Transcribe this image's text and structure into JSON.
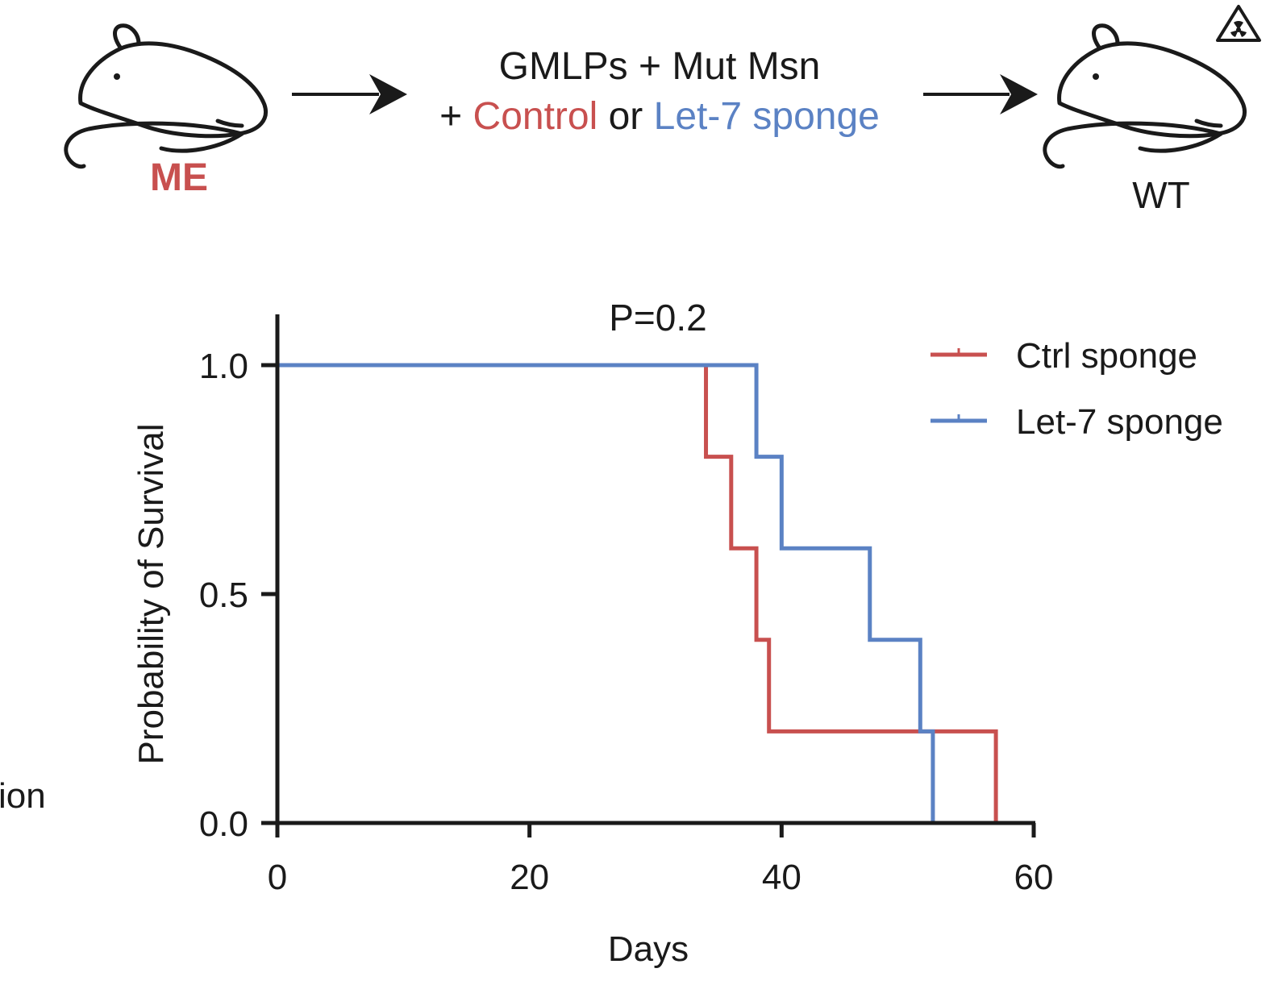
{
  "schematic": {
    "donor_label": "ME",
    "line1": "GMLPs + Mut Msn",
    "line2_prefix": "+ ",
    "line2_control": "Control",
    "line2_or": " or ",
    "line2_sponge": "Let-7 sponge",
    "recipient_label": "WT",
    "radiation_icon": "radiation-warning-icon",
    "mouse_icon": "mouse-icon",
    "arrow_icon": "right-arrow-icon"
  },
  "cropped_text": "ion",
  "colors": {
    "control": "#c8504f",
    "sponge": "#5b82c4",
    "axis": "#1a1a1a"
  },
  "chart_data": {
    "type": "line",
    "subtype": "kaplan-meier-step",
    "title": "P=0.2",
    "xlabel": "Days",
    "ylabel": "Probability of Survival",
    "xlim": [
      0,
      60
    ],
    "ylim": [
      0,
      1.0
    ],
    "xticks": [
      "0",
      "20",
      "40",
      "60"
    ],
    "yticks": [
      "0.0",
      "0.5",
      "1.0"
    ],
    "xtick_values": [
      0,
      20,
      40,
      60
    ],
    "ytick_values": [
      0,
      0.5,
      1.0
    ],
    "grid": false,
    "legend_position": "top-right",
    "series": [
      {
        "name": "Ctrl sponge",
        "color": "#c8504f",
        "x": [
          0,
          34,
          36,
          38,
          39,
          57
        ],
        "y": [
          1.0,
          0.8,
          0.6,
          0.4,
          0.2,
          0.0
        ]
      },
      {
        "name": "Let-7 sponge",
        "color": "#5b82c4",
        "x": [
          0,
          38,
          40,
          47,
          51,
          52
        ],
        "y": [
          1.0,
          0.8,
          0.6,
          0.4,
          0.2,
          0.0
        ]
      }
    ]
  }
}
